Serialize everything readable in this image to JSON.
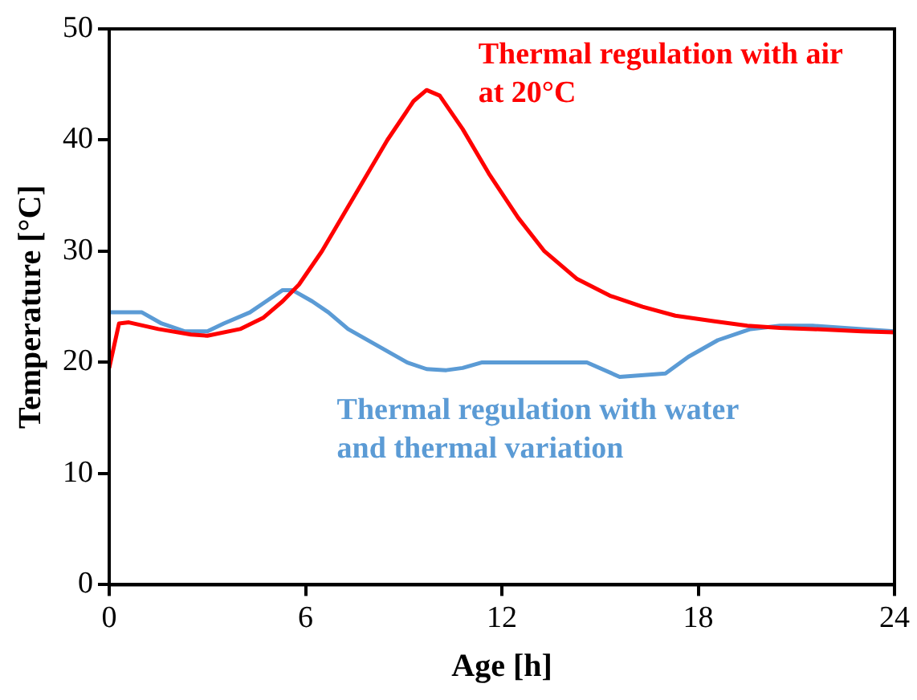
{
  "chart_data": {
    "type": "line",
    "xlabel": "Age [h]",
    "ylabel": "Temperature [°C]",
    "xlim": [
      0,
      24
    ],
    "xticks": [
      0,
      6,
      12,
      18,
      24
    ],
    "ylim": [
      0,
      50
    ],
    "yticks": [
      0,
      10,
      20,
      30,
      40,
      50
    ],
    "grid": false,
    "legend": false,
    "marker": "none",
    "line_style": "solid",
    "series": [
      {
        "name": "Thermal regulation with air at 20°C",
        "color": "#ff0000",
        "x": [
          0,
          0.3,
          0.6,
          1.5,
          2.5,
          3,
          4,
          4.7,
          5.3,
          5.8,
          6.5,
          7.5,
          8.5,
          9.3,
          9.7,
          10.1,
          10.8,
          11.6,
          12.5,
          13.3,
          14.3,
          15.3,
          16.3,
          17.3,
          18.5,
          19.5,
          20.5,
          21.5,
          23,
          24
        ],
        "values": [
          19.5,
          23.5,
          23.6,
          23,
          22.5,
          22.4,
          23,
          24,
          25.5,
          27,
          30,
          35,
          40,
          43.5,
          44.5,
          44,
          41,
          37,
          33,
          30,
          27.5,
          26,
          25,
          24.2,
          23.7,
          23.3,
          23.1,
          23,
          22.8,
          22.7
        ]
      },
      {
        "name": "Thermal regulation with water and thermal variation",
        "color": "#5b9bd5",
        "x": [
          0,
          1,
          1.6,
          2.3,
          3,
          3.5,
          4.3,
          4.8,
          5.3,
          5.6,
          6.2,
          6.7,
          7.3,
          8.2,
          9.1,
          9.7,
          10.3,
          10.8,
          11.4,
          14.6,
          15.6,
          17,
          17.7,
          18.6,
          19.6,
          20.5,
          21.5,
          23,
          24
        ],
        "values": [
          24.5,
          24.5,
          23.5,
          22.8,
          22.8,
          23.5,
          24.5,
          25.5,
          26.5,
          26.5,
          25.5,
          24.5,
          23,
          21.5,
          20,
          19.4,
          19.3,
          19.5,
          20,
          20,
          18.7,
          19,
          20.5,
          22,
          23,
          23.3,
          23.3,
          23,
          22.8
        ]
      }
    ]
  }
}
